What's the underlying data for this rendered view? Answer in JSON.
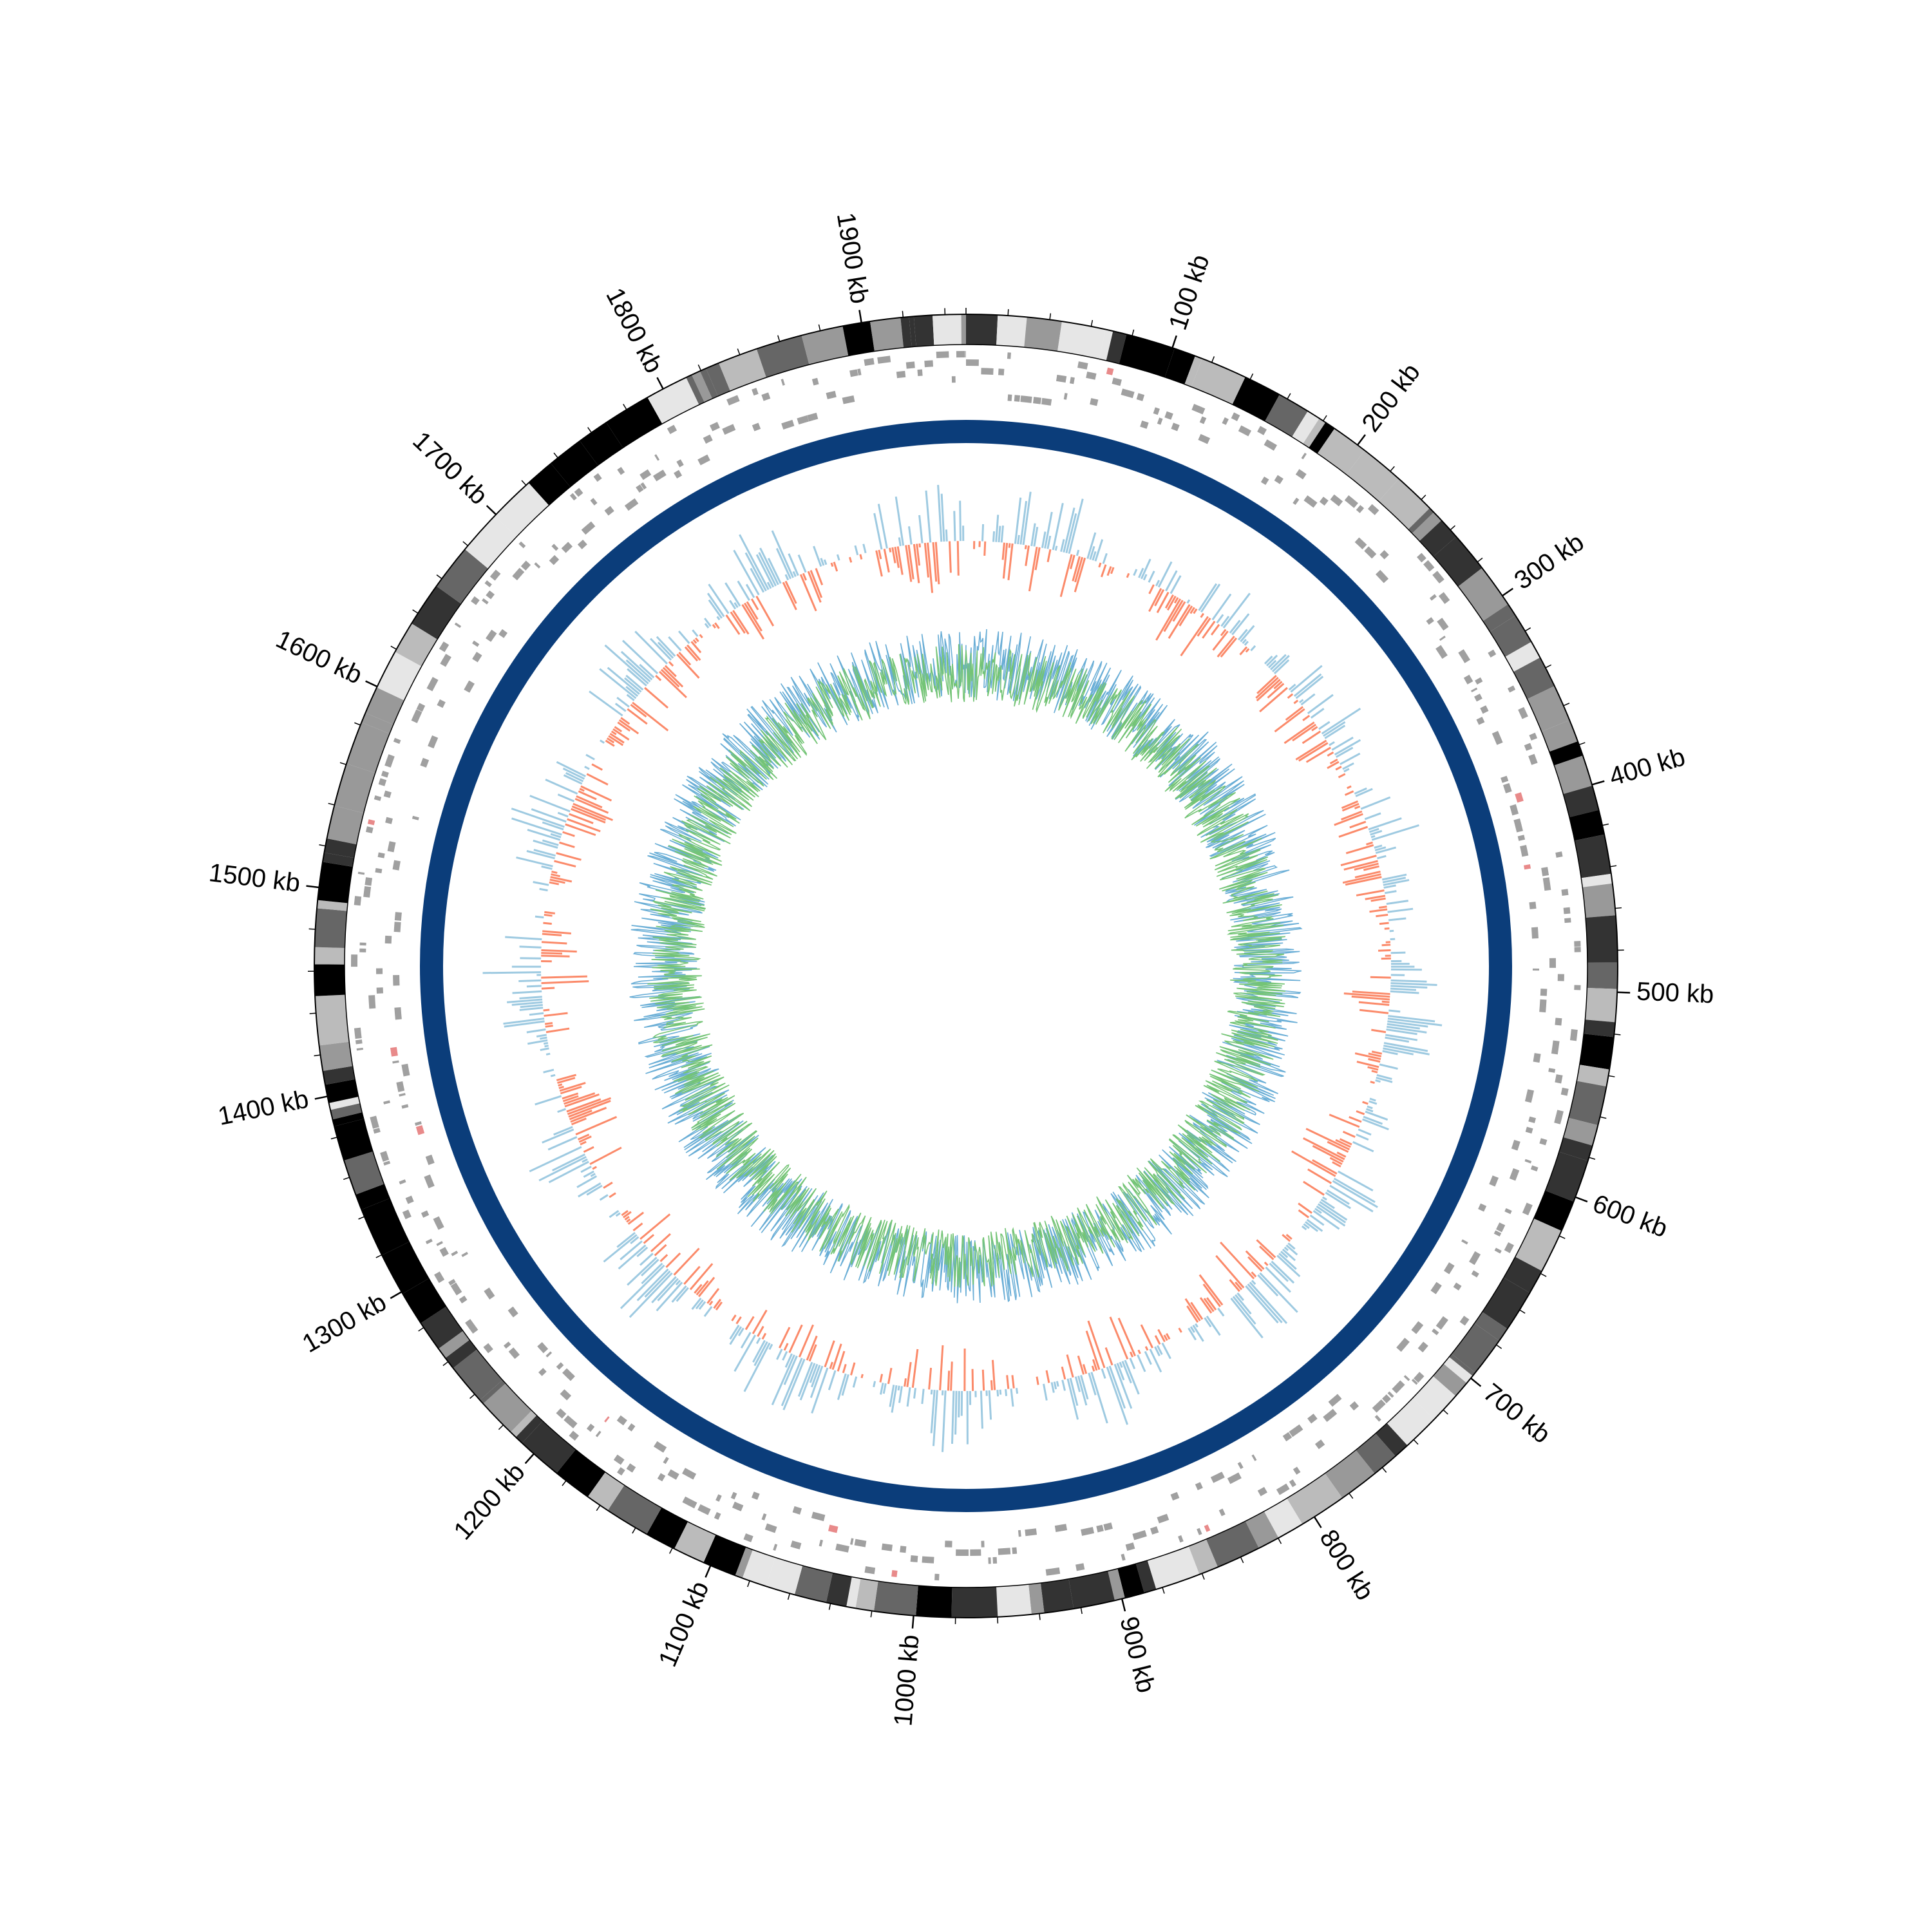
{
  "genome": {
    "length_kb": 1950,
    "tick_unit": "kb",
    "major_ticks_kb": [
      100,
      200,
      300,
      400,
      500,
      600,
      700,
      800,
      900,
      1000,
      1100,
      1200,
      1300,
      1400,
      1500,
      1600,
      1700,
      1800,
      1900
    ],
    "tick_labels": [
      "100 kb",
      "200 kb",
      "300 kb",
      "400 kb",
      "500 kb",
      "600 kb",
      "700 kb",
      "800 kb",
      "900 kb",
      "1000 kb",
      "1100 kb",
      "1200 kb",
      "1300 kb",
      "1400 kb",
      "1500 kb",
      "1600 kb",
      "1700 kb",
      "1800 kb",
      "1900 kb"
    ]
  },
  "tracks": [
    {
      "name": "cytoband",
      "colors": [
        "#000000",
        "#333333",
        "#666666",
        "#999999",
        "#bbbbbb",
        "#e6e6e6"
      ]
    },
    {
      "name": "features",
      "color": "#a0a0a0",
      "accent": "#e88a8a"
    },
    {
      "name": "backbone",
      "color": "#0b3d7a"
    },
    {
      "name": "histogram-positive",
      "color": "#9ecae1"
    },
    {
      "name": "histogram-negative",
      "color": "#fb8a6a"
    },
    {
      "name": "line-plot-a",
      "color": "#6aaed6"
    },
    {
      "name": "line-plot-b",
      "color": "#74c476"
    }
  ]
}
